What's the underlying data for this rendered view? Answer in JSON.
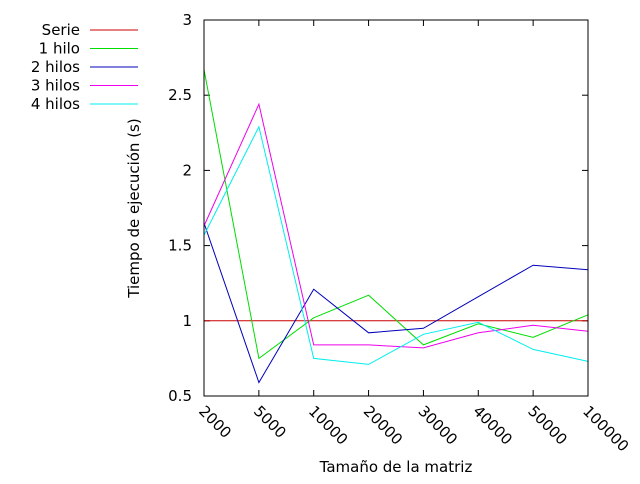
{
  "chart_data": {
    "type": "line",
    "xlabel": "Tamaño de la matriz",
    "ylabel": "Tiempo de ejecución (s)",
    "categories": [
      "2000",
      "5000",
      "10000",
      "20000",
      "30000",
      "40000",
      "50000",
      "100000"
    ],
    "ylim": [
      0.5,
      3
    ],
    "yticks": [
      "0.5",
      "1",
      "1.5",
      "2",
      "2.5",
      "3"
    ],
    "legend_position": "top-left",
    "series": [
      {
        "name": "Serie",
        "color": "#cc0000",
        "values": [
          1.0,
          1.0,
          1.0,
          1.0,
          1.0,
          1.0,
          1.0,
          1.0
        ]
      },
      {
        "name": "1 hilo",
        "color": "#00dd00",
        "values": [
          2.67,
          0.75,
          1.02,
          1.17,
          0.84,
          0.98,
          0.89,
          1.04
        ]
      },
      {
        "name": "2 hilos",
        "color": "#0000bb",
        "values": [
          1.65,
          0.59,
          1.21,
          0.92,
          0.95,
          1.16,
          1.37,
          1.34
        ]
      },
      {
        "name": "3 hilos",
        "color": "#ee00ee",
        "values": [
          1.63,
          2.44,
          0.84,
          0.84,
          0.82,
          0.92,
          0.97,
          0.93
        ]
      },
      {
        "name": "4 hilos",
        "color": "#00eeee",
        "values": [
          1.57,
          2.29,
          0.75,
          0.71,
          0.91,
          0.99,
          0.81,
          0.73
        ]
      }
    ]
  }
}
